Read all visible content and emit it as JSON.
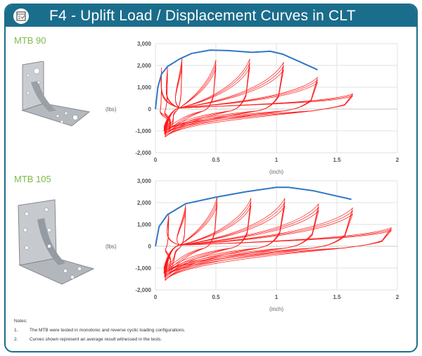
{
  "header": {
    "title": "F4 - Uplift Load / Displacement Curves in CLT",
    "icon": "checklist-icon"
  },
  "colors": {
    "header": "#1b6d8c",
    "label": "#7dbb47",
    "envelope": "#2f78c4",
    "cyclic": "#ff1a1a"
  },
  "notes": {
    "heading": "Notes:",
    "items": [
      {
        "num": "1.",
        "text": "The MTB were tested in monotonic and reverse cyclic loading configurations."
      },
      {
        "num": "2.",
        "text": "Curves shown represent an average result witnessed in the tests."
      }
    ]
  },
  "chart_data": [
    {
      "product": "MTB 90",
      "type": "line",
      "xlabel": "(inch)",
      "ylabel": "(lbs)",
      "xlim": [
        0,
        2
      ],
      "ylim": [
        -2000,
        3000
      ],
      "xticks": [
        "0",
        "0.5",
        "1",
        "1.5",
        "2"
      ],
      "yticks": [
        "-2,000",
        "-1,000",
        "0",
        "1,000",
        "2,000",
        "3,000"
      ],
      "grid": true,
      "envelope": [
        [
          0,
          0
        ],
        [
          0.02,
          1000
        ],
        [
          0.05,
          1600
        ],
        [
          0.1,
          1950
        ],
        [
          0.2,
          2300
        ],
        [
          0.3,
          2550
        ],
        [
          0.45,
          2700
        ],
        [
          0.6,
          2680
        ],
        [
          0.8,
          2600
        ],
        [
          0.95,
          2650
        ],
        [
          1.05,
          2520
        ],
        [
          1.2,
          2150
        ],
        [
          1.34,
          1800
        ]
      ],
      "cycle_peaks": [
        [
          0.05,
          1900
        ],
        [
          0.1,
          1950
        ],
        [
          0.22,
          2350
        ],
        [
          0.5,
          2250
        ],
        [
          0.78,
          2300
        ],
        [
          1.06,
          2150
        ],
        [
          1.34,
          1450
        ],
        [
          1.63,
          700
        ]
      ],
      "min_load": -1350
    },
    {
      "product": "MTB 105",
      "type": "line",
      "xlabel": "(inch)",
      "ylabel": "(lbs)",
      "xlim": [
        0,
        2
      ],
      "ylim": [
        -2000,
        3000
      ],
      "xticks": [
        "0",
        "0.5",
        "1",
        "1.5",
        "2"
      ],
      "yticks": [
        "-2,000",
        "-1,000",
        "0",
        "1,000",
        "2,000",
        "3,000"
      ],
      "grid": true,
      "envelope": [
        [
          0,
          0
        ],
        [
          0.03,
          900
        ],
        [
          0.1,
          1450
        ],
        [
          0.25,
          1950
        ],
        [
          0.5,
          2250
        ],
        [
          0.75,
          2500
        ],
        [
          1,
          2700
        ],
        [
          1.1,
          2700
        ],
        [
          1.3,
          2550
        ],
        [
          1.62,
          2150
        ]
      ],
      "cycle_peaks": [
        [
          0.11,
          1500
        ],
        [
          0.25,
          1900
        ],
        [
          0.51,
          2250
        ],
        [
          0.79,
          2200
        ],
        [
          1.07,
          2200
        ],
        [
          1.35,
          1950
        ],
        [
          1.63,
          1750
        ],
        [
          1.95,
          850
        ]
      ],
      "min_load": -1650
    }
  ]
}
